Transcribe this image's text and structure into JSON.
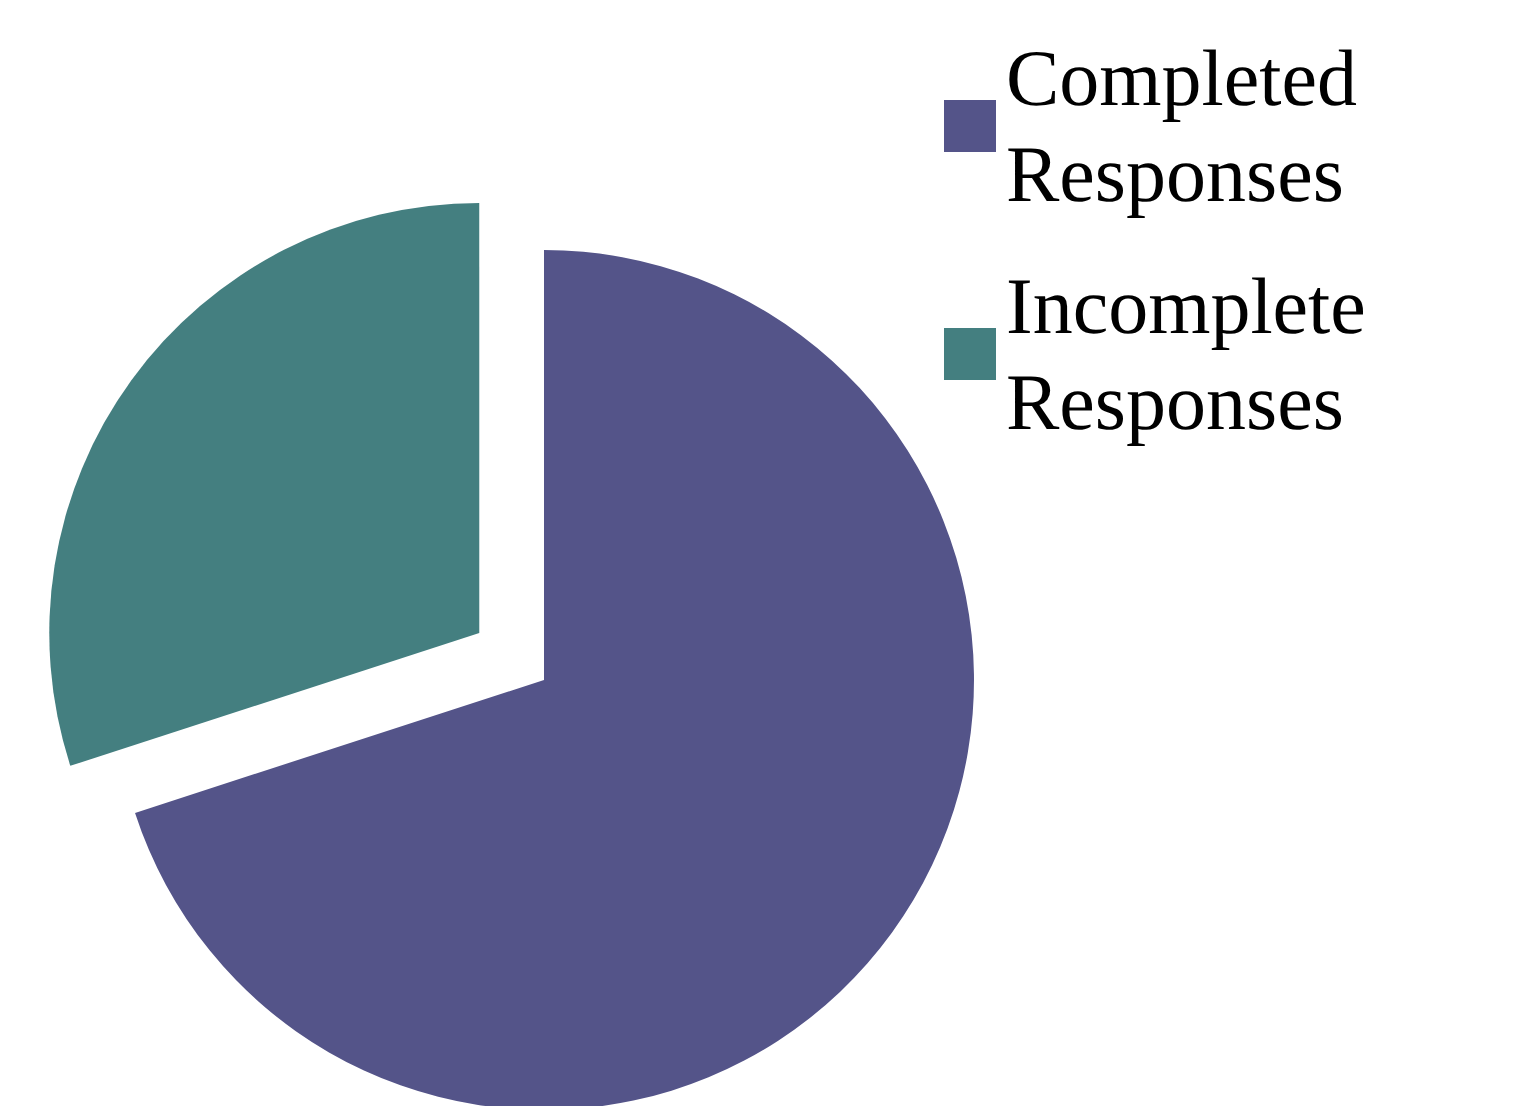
{
  "chart_data": {
    "type": "pie",
    "categories": [
      "Completed Responses",
      "Incomplete Responses"
    ],
    "values": [
      70,
      30
    ],
    "colors": [
      "#545489",
      "#447f80"
    ],
    "legend": "top right"
  }
}
